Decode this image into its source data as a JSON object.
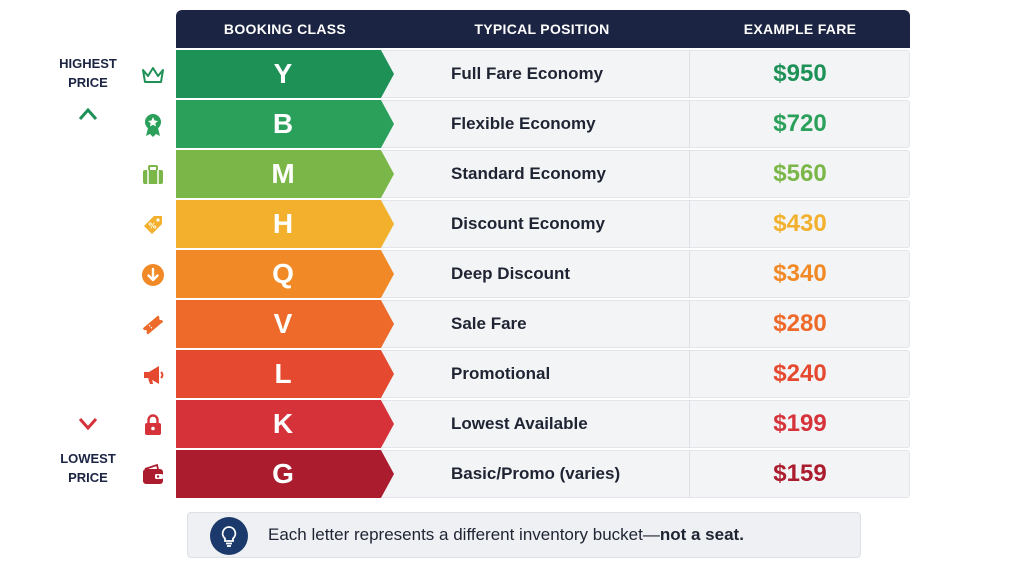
{
  "header": {
    "booking_class": "BOOKING CLASS",
    "typical_position": "TYPICAL POSITION",
    "example_fare": "EXAMPLE FARE"
  },
  "scale": {
    "top_label_line1": "HIGHEST",
    "top_label_line2": "PRICE",
    "bottom_label_line1": "LOWEST",
    "bottom_label_line2": "PRICE"
  },
  "rows": [
    {
      "class": "Y",
      "position": "Full Fare Economy",
      "fare": "$950",
      "color": "#1e9157",
      "icon": "crown-icon"
    },
    {
      "class": "B",
      "position": "Flexible Economy",
      "fare": "$720",
      "color": "#2aa05a",
      "icon": "award-ribbon-icon"
    },
    {
      "class": "M",
      "position": "Standard Economy",
      "fare": "$560",
      "color": "#7ab648",
      "icon": "suitcase-icon"
    },
    {
      "class": "H",
      "position": "Discount Economy",
      "fare": "$430",
      "color": "#f2b02c",
      "icon": "percent-tag-icon"
    },
    {
      "class": "Q",
      "position": "Deep Discount",
      "fare": "$340",
      "color": "#f18a26",
      "icon": "down-arrow-circle-icon"
    },
    {
      "class": "V",
      "position": "Sale Fare",
      "fare": "$280",
      "color": "#ee6a2a",
      "icon": "ticket-icon"
    },
    {
      "class": "L",
      "position": "Promotional",
      "fare": "$240",
      "color": "#e5492f",
      "icon": "megaphone-icon"
    },
    {
      "class": "K",
      "position": "Lowest Available",
      "fare": "$199",
      "color": "#d6323a",
      "icon": "lock-icon"
    },
    {
      "class": "G",
      "position": "Basic/Promo (varies)",
      "fare": "$159",
      "color": "#ab1d2e",
      "icon": "wallet-icon"
    }
  ],
  "note": {
    "text_main": "Each letter represents a different inventory bucket—",
    "text_bold": "not a seat."
  }
}
